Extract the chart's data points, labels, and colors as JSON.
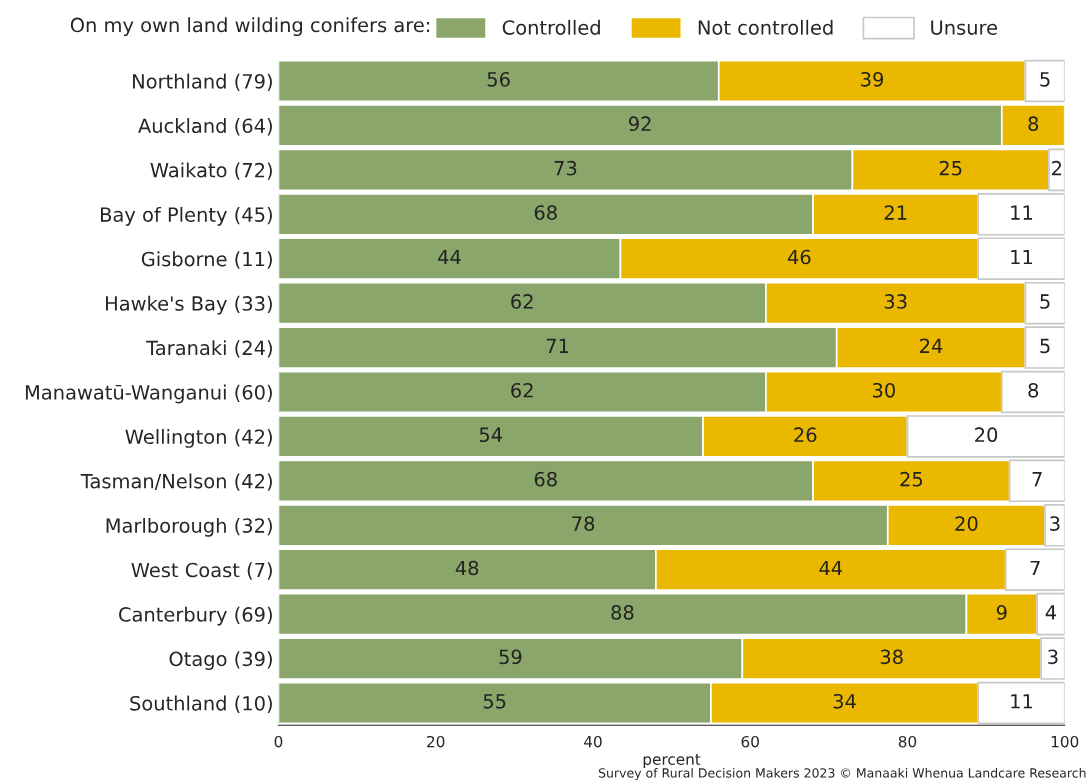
{
  "chart_data": {
    "type": "bar",
    "orientation": "horizontal",
    "stacked": true,
    "legend_title": "On my own land wilding conifers are:",
    "xlabel": "percent",
    "categories": [
      "Northland (79)",
      "Auckland (64)",
      "Waikato (72)",
      "Bay of Plenty (45)",
      "Gisborne (11)",
      "Hawke's Bay (33)",
      "Taranaki (24)",
      "Manawatū-Wanganui (60)",
      "Wellington (42)",
      "Tasman/Nelson (42)",
      "Marlborough (32)",
      "West Coast (7)",
      "Canterbury (69)",
      "Otago (39)",
      "Southland (10)"
    ],
    "series": [
      {
        "name": "Controlled",
        "color": "#8ba66b",
        "values": [
          56,
          92,
          73,
          68,
          43.5,
          62,
          71,
          62,
          54,
          68,
          77.5,
          48,
          87.5,
          59,
          55
        ],
        "value_labels": [
          "56",
          "92",
          "73",
          "68",
          "44",
          "62",
          "71",
          "62",
          "54",
          "68",
          "78",
          "48",
          "88",
          "59",
          "55"
        ]
      },
      {
        "name": "Not controlled",
        "color": "#ebb800",
        "values": [
          39,
          8,
          25,
          21,
          45.5,
          33,
          24,
          30,
          26,
          25,
          20,
          44.5,
          9,
          38,
          34
        ],
        "value_labels": [
          "39",
          "8",
          "25",
          "21",
          "46",
          "33",
          "24",
          "30",
          "26",
          "25",
          "20",
          "44",
          "9",
          "38",
          "34"
        ]
      },
      {
        "name": "Unsure",
        "color": "#ffffff",
        "values": [
          5,
          0,
          2,
          11,
          11,
          5,
          5,
          8,
          20,
          7,
          2.5,
          7.5,
          3.5,
          3,
          11
        ],
        "value_labels": [
          "5",
          null,
          "2",
          "11",
          "11",
          "5",
          "5",
          "8",
          "20",
          "7",
          "3",
          "7",
          "4",
          "3",
          "11"
        ]
      }
    ],
    "xlim": [
      0,
      100
    ],
    "xticks": [
      0,
      20,
      40,
      60,
      80,
      100
    ],
    "grid": false,
    "legend": "top",
    "annotations": [
      "Survey of Rural Decision Makers 2023 © Manaaki Whenua Landcare Research"
    ]
  }
}
